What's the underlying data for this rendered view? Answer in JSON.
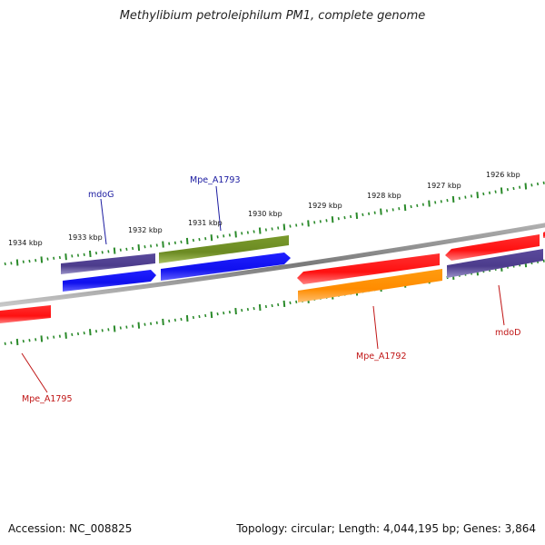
{
  "title": "Methylibium petroleiphilum PM1, complete genome",
  "footer": {
    "accession": "Accession: NC_008825",
    "summary": "Topology: circular; Length: 4,044,195 bp; Genes: 3,864"
  },
  "colors": {
    "backbone": "#8a8a8a",
    "tick": "#2a8a2a",
    "label_blue": "#1a1aa0",
    "label_red": "#c01515",
    "gene_red": "#ff1010",
    "gene_blue": "#1010ee",
    "gene_purple": "#4c3c8c",
    "gene_olive": "#6b8a22",
    "gene_orange": "#ff8c00"
  },
  "scale_labels": [
    {
      "text": "1934 kbp",
      "kbp": 1934
    },
    {
      "text": "1933 kbp",
      "kbp": 1933
    },
    {
      "text": "1932 kbp",
      "kbp": 1932
    },
    {
      "text": "1931 kbp",
      "kbp": 1931
    },
    {
      "text": "1930 kbp",
      "kbp": 1930
    },
    {
      "text": "1929 kbp",
      "kbp": 1929
    },
    {
      "text": "1928 kbp",
      "kbp": 1928
    },
    {
      "text": "1927 kbp",
      "kbp": 1927
    },
    {
      "text": "1926 kbp",
      "kbp": 1926
    }
  ],
  "gene_labels": [
    {
      "text": "mdoG",
      "color": "label_blue"
    },
    {
      "text": "Mpe_A1793",
      "color": "label_blue"
    },
    {
      "text": "Mpe_A1792",
      "color": "label_red"
    },
    {
      "text": "mdoD",
      "color": "label_red"
    },
    {
      "text": "Mpe_A1795",
      "color": "label_red"
    }
  ]
}
